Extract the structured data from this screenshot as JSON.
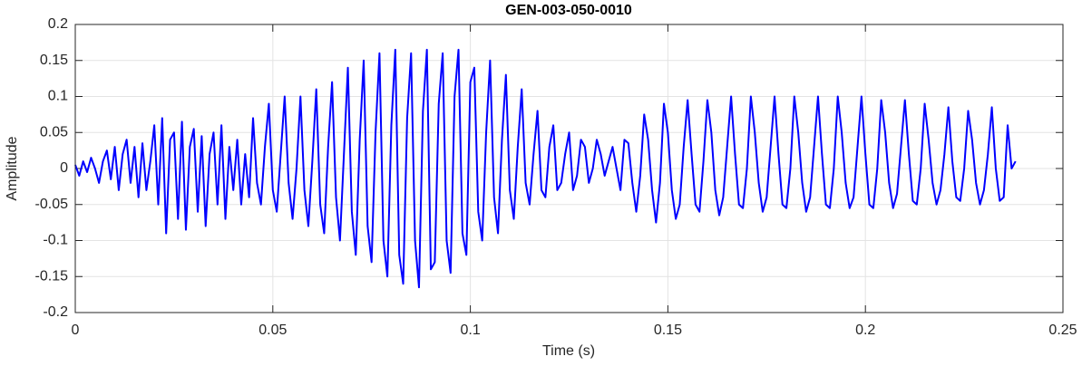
{
  "chart_data": {
    "type": "line",
    "title": "GEN-003-050-0010",
    "x_label": "Time (s)",
    "y_label": "Amplitude",
    "color": "#0000ff",
    "grid": true,
    "xlim": [
      0,
      0.25
    ],
    "xticks": [
      0,
      0.05,
      0.1,
      0.15,
      0.2,
      0.25
    ],
    "ylim": [
      -0.2,
      0.2
    ],
    "yticks": [
      -0.2,
      -0.15,
      -0.1,
      -0.05,
      0,
      0.05,
      0.1,
      0.15,
      0.2
    ],
    "x": [
      0,
      0.001,
      0.002,
      0.003,
      0.004,
      0.005,
      0.006,
      0.007,
      0.008,
      0.009,
      0.01,
      0.011,
      0.012,
      0.013,
      0.014,
      0.015,
      0.016,
      0.017,
      0.018,
      0.019,
      0.02,
      0.021,
      0.022,
      0.023,
      0.024,
      0.025,
      0.026,
      0.027,
      0.028,
      0.029,
      0.03,
      0.031,
      0.032,
      0.033,
      0.034,
      0.035,
      0.036,
      0.037,
      0.038,
      0.039,
      0.04,
      0.041,
      0.042,
      0.043,
      0.044,
      0.045,
      0.046,
      0.047,
      0.048,
      0.049,
      0.05,
      0.051,
      0.052,
      0.053,
      0.054,
      0.055,
      0.056,
      0.057,
      0.058,
      0.059,
      0.06,
      0.061,
      0.062,
      0.063,
      0.064,
      0.065,
      0.066,
      0.067,
      0.068,
      0.069,
      0.07,
      0.071,
      0.072,
      0.073,
      0.074,
      0.075,
      0.076,
      0.077,
      0.078,
      0.079,
      0.08,
      0.081,
      0.082,
      0.083,
      0.084,
      0.085,
      0.086,
      0.087,
      0.088,
      0.089,
      0.09,
      0.091,
      0.092,
      0.093,
      0.094,
      0.095,
      0.096,
      0.097,
      0.098,
      0.099,
      0.1,
      0.101,
      0.102,
      0.103,
      0.104,
      0.105,
      0.106,
      0.107,
      0.108,
      0.109,
      0.11,
      0.111,
      0.112,
      0.113,
      0.114,
      0.115,
      0.116,
      0.117,
      0.118,
      0.119,
      0.12,
      0.121,
      0.122,
      0.123,
      0.124,
      0.125,
      0.126,
      0.127,
      0.128,
      0.129,
      0.13,
      0.131,
      0.132,
      0.133,
      0.134,
      0.135,
      0.136,
      0.137,
      0.138,
      0.139,
      0.14,
      0.141,
      0.142,
      0.143,
      0.144,
      0.145,
      0.146,
      0.147,
      0.148,
      0.149,
      0.15,
      0.151,
      0.152,
      0.153,
      0.154,
      0.155,
      0.156,
      0.157,
      0.158,
      0.159,
      0.16,
      0.161,
      0.162,
      0.163,
      0.164,
      0.165,
      0.166,
      0.167,
      0.168,
      0.169,
      0.17,
      0.171,
      0.172,
      0.173,
      0.174,
      0.175,
      0.176,
      0.177,
      0.178,
      0.179,
      0.18,
      0.181,
      0.182,
      0.183,
      0.184,
      0.185,
      0.186,
      0.187,
      0.188,
      0.189,
      0.19,
      0.191,
      0.192,
      0.193,
      0.194,
      0.195,
      0.196,
      0.197,
      0.198,
      0.199,
      0.2,
      0.201,
      0.202,
      0.203,
      0.204,
      0.205,
      0.206,
      0.207,
      0.208,
      0.209,
      0.21,
      0.211,
      0.212,
      0.213,
      0.214,
      0.215,
      0.216,
      0.217,
      0.218,
      0.219,
      0.22,
      0.221,
      0.222,
      0.223,
      0.224,
      0.225,
      0.226,
      0.227,
      0.228,
      0.229,
      0.23,
      0.231,
      0.232,
      0.233,
      0.234,
      0.235,
      0.236,
      0.237,
      0.238
    ],
    "values": [
      0.005,
      -0.01,
      0.01,
      -0.005,
      0.015,
      0.0,
      -0.02,
      0.01,
      0.025,
      -0.015,
      0.03,
      -0.03,
      0.02,
      0.04,
      -0.02,
      0.03,
      -0.04,
      0.035,
      -0.03,
      0.01,
      0.06,
      -0.05,
      0.07,
      -0.09,
      0.04,
      0.05,
      -0.07,
      0.065,
      -0.085,
      0.03,
      0.055,
      -0.06,
      0.045,
      -0.08,
      0.02,
      0.05,
      -0.05,
      0.06,
      -0.07,
      0.03,
      -0.03,
      0.04,
      -0.05,
      0.02,
      -0.04,
      0.07,
      -0.02,
      -0.05,
      0.03,
      0.09,
      -0.03,
      -0.06,
      0.02,
      0.1,
      -0.02,
      -0.07,
      0.0,
      0.1,
      -0.03,
      -0.08,
      0.01,
      0.11,
      -0.05,
      -0.09,
      0.03,
      0.12,
      -0.04,
      -0.1,
      0.02,
      0.14,
      -0.06,
      -0.12,
      0.04,
      0.15,
      -0.08,
      -0.13,
      0.05,
      0.16,
      -0.1,
      -0.15,
      0.06,
      0.165,
      -0.12,
      -0.16,
      0.07,
      0.16,
      -0.1,
      -0.165,
      0.08,
      0.165,
      -0.14,
      -0.13,
      0.09,
      0.16,
      -0.1,
      -0.145,
      0.1,
      0.165,
      -0.09,
      -0.12,
      0.12,
      0.14,
      -0.06,
      -0.1,
      0.05,
      0.15,
      -0.04,
      -0.09,
      0.04,
      0.13,
      -0.03,
      -0.07,
      0.03,
      0.11,
      -0.02,
      -0.05,
      0.02,
      0.08,
      -0.03,
      -0.04,
      0.03,
      0.06,
      -0.03,
      -0.02,
      0.02,
      0.05,
      -0.03,
      -0.01,
      0.04,
      0.03,
      -0.02,
      0.0,
      0.04,
      0.02,
      -0.01,
      0.01,
      0.03,
      0.0,
      -0.03,
      0.04,
      0.035,
      -0.02,
      -0.06,
      -0.01,
      0.075,
      0.04,
      -0.03,
      -0.075,
      -0.02,
      0.09,
      0.05,
      -0.03,
      -0.07,
      -0.05,
      0.03,
      0.095,
      0.02,
      -0.05,
      -0.06,
      0.01,
      0.095,
      0.05,
      -0.03,
      -0.065,
      -0.04,
      0.03,
      0.1,
      0.02,
      -0.05,
      -0.055,
      0.0,
      0.1,
      0.05,
      -0.02,
      -0.06,
      -0.04,
      0.03,
      0.1,
      0.02,
      -0.05,
      -0.055,
      0.0,
      0.1,
      0.05,
      -0.02,
      -0.06,
      -0.04,
      0.03,
      0.1,
      0.02,
      -0.05,
      -0.055,
      0.0,
      0.1,
      0.05,
      -0.02,
      -0.055,
      -0.04,
      0.03,
      0.1,
      0.02,
      -0.05,
      -0.055,
      0.0,
      0.095,
      0.05,
      -0.02,
      -0.055,
      -0.035,
      0.03,
      0.095,
      0.02,
      -0.045,
      -0.05,
      0.0,
      0.09,
      0.04,
      -0.02,
      -0.05,
      -0.03,
      0.02,
      0.085,
      0.01,
      -0.04,
      -0.045,
      0.0,
      0.08,
      0.04,
      -0.02,
      -0.05,
      -0.03,
      0.02,
      0.085,
      0.0,
      -0.045,
      -0.04,
      0.06,
      0.0,
      0.01
    ]
  }
}
